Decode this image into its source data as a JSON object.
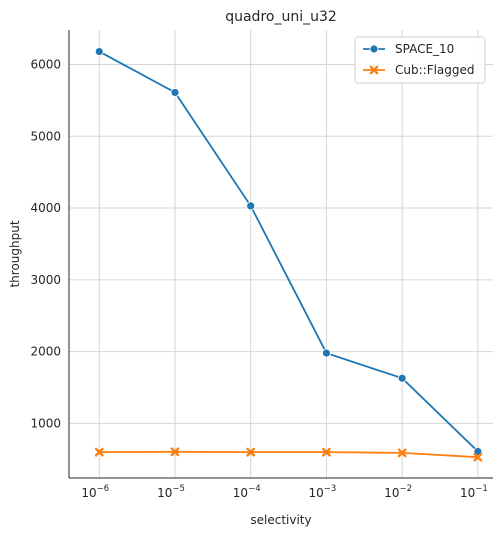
{
  "chart_data": {
    "type": "line",
    "title": "quadro_uni_u32",
    "xlabel": "selectivity",
    "ylabel": "throughput",
    "x_scale": "log",
    "x": [
      1e-06,
      1e-05,
      0.0001,
      0.001,
      0.01,
      0.1
    ],
    "x_tick_labels": [
      {
        "base": "10",
        "exp": "−6"
      },
      {
        "base": "10",
        "exp": "−5"
      },
      {
        "base": "10",
        "exp": "−4"
      },
      {
        "base": "10",
        "exp": "−3"
      },
      {
        "base": "10",
        "exp": "−2"
      },
      {
        "base": "10",
        "exp": "−1"
      }
    ],
    "y_ticks": [
      1000,
      2000,
      3000,
      4000,
      5000,
      6000
    ],
    "y_tick_labels": [
      "1000",
      "2000",
      "3000",
      "4000",
      "5000",
      "6000"
    ],
    "ylim": [
      240,
      6480
    ],
    "grid": true,
    "legend_position": "top-right",
    "series": [
      {
        "name": "SPACE_10",
        "color": "#1f77b4",
        "marker": "circle",
        "values": [
          6180,
          5610,
          4030,
          1980,
          1630,
          610
        ]
      },
      {
        "name": "Cub::Flagged",
        "color": "#ff7f0e",
        "marker": "x",
        "values": [
          600,
          605,
          600,
          600,
          590,
          530
        ]
      }
    ]
  }
}
